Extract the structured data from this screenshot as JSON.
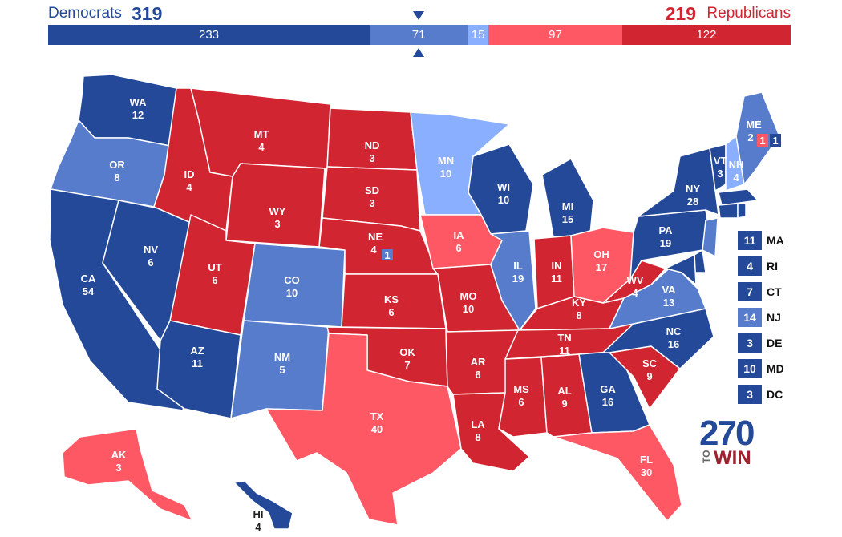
{
  "header": {
    "dem_label": "Democrats",
    "dem_total": "319",
    "rep_total": "219",
    "rep_label": "Republicans"
  },
  "colors": {
    "safe_dem": "#244999",
    "likely_dem": "#577ccc",
    "lean_dem": "#8aafff",
    "lean_rep": "#ff5865",
    "likely_rep": "#ff5865",
    "safe_rep": "#d22532"
  },
  "bar": [
    {
      "value": "233",
      "color": "#244999",
      "count": 233
    },
    {
      "value": "71",
      "color": "#577ccc",
      "count": 71
    },
    {
      "value": "15",
      "color": "#8aafff",
      "count": 15
    },
    {
      "value": "97",
      "color": "#ff5865",
      "count": 97
    },
    {
      "value": "122",
      "color": "#d22532",
      "count": 122
    }
  ],
  "states": {
    "WA": {
      "abbr": "WA",
      "ev": "12",
      "color": "#244999"
    },
    "OR": {
      "abbr": "OR",
      "ev": "8",
      "color": "#577ccc"
    },
    "CA": {
      "abbr": "CA",
      "ev": "54",
      "color": "#244999"
    },
    "NV": {
      "abbr": "NV",
      "ev": "6",
      "color": "#244999"
    },
    "ID": {
      "abbr": "ID",
      "ev": "4",
      "color": "#d22532"
    },
    "MT": {
      "abbr": "MT",
      "ev": "4",
      "color": "#d22532"
    },
    "WY": {
      "abbr": "WY",
      "ev": "3",
      "color": "#d22532"
    },
    "UT": {
      "abbr": "UT",
      "ev": "6",
      "color": "#d22532"
    },
    "AZ": {
      "abbr": "AZ",
      "ev": "11",
      "color": "#244999"
    },
    "CO": {
      "abbr": "CO",
      "ev": "10",
      "color": "#577ccc"
    },
    "NM": {
      "abbr": "NM",
      "ev": "5",
      "color": "#577ccc"
    },
    "ND": {
      "abbr": "ND",
      "ev": "3",
      "color": "#d22532"
    },
    "SD": {
      "abbr": "SD",
      "ev": "3",
      "color": "#d22532"
    },
    "NE": {
      "abbr": "NE",
      "ev": "4",
      "color": "#d22532",
      "district": "1"
    },
    "KS": {
      "abbr": "KS",
      "ev": "6",
      "color": "#d22532"
    },
    "OK": {
      "abbr": "OK",
      "ev": "7",
      "color": "#d22532"
    },
    "TX": {
      "abbr": "TX",
      "ev": "40",
      "color": "#ff5865"
    },
    "MN": {
      "abbr": "MN",
      "ev": "10",
      "color": "#8aafff"
    },
    "IA": {
      "abbr": "IA",
      "ev": "6",
      "color": "#ff5865"
    },
    "MO": {
      "abbr": "MO",
      "ev": "10",
      "color": "#d22532"
    },
    "AR": {
      "abbr": "AR",
      "ev": "6",
      "color": "#d22532"
    },
    "LA": {
      "abbr": "LA",
      "ev": "8",
      "color": "#d22532"
    },
    "WI": {
      "abbr": "WI",
      "ev": "10",
      "color": "#244999"
    },
    "IL": {
      "abbr": "IL",
      "ev": "19",
      "color": "#577ccc"
    },
    "MI": {
      "abbr": "MI",
      "ev": "15",
      "color": "#244999"
    },
    "IN": {
      "abbr": "IN",
      "ev": "11",
      "color": "#d22532"
    },
    "OH": {
      "abbr": "OH",
      "ev": "17",
      "color": "#ff5865"
    },
    "KY": {
      "abbr": "KY",
      "ev": "8",
      "color": "#d22532"
    },
    "TN": {
      "abbr": "TN",
      "ev": "11",
      "color": "#d22532"
    },
    "MS": {
      "abbr": "MS",
      "ev": "6",
      "color": "#d22532"
    },
    "AL": {
      "abbr": "AL",
      "ev": "9",
      "color": "#d22532"
    },
    "GA": {
      "abbr": "GA",
      "ev": "16",
      "color": "#244999"
    },
    "FL": {
      "abbr": "FL",
      "ev": "30",
      "color": "#ff5865"
    },
    "SC": {
      "abbr": "SC",
      "ev": "9",
      "color": "#d22532"
    },
    "NC": {
      "abbr": "NC",
      "ev": "16",
      "color": "#244999"
    },
    "VA": {
      "abbr": "VA",
      "ev": "13",
      "color": "#577ccc"
    },
    "WV": {
      "abbr": "WV",
      "ev": "4",
      "color": "#d22532"
    },
    "PA": {
      "abbr": "PA",
      "ev": "19",
      "color": "#244999"
    },
    "NY": {
      "abbr": "NY",
      "ev": "28",
      "color": "#244999"
    },
    "VT": {
      "abbr": "VT",
      "ev": "3",
      "color": "#244999"
    },
    "NH": {
      "abbr": "NH",
      "ev": "4",
      "color": "#8aafff"
    },
    "ME": {
      "abbr": "ME",
      "ev": "2",
      "color": "#577ccc",
      "district_rep": "1",
      "district_dem": "1"
    },
    "AK": {
      "abbr": "AK",
      "ev": "3",
      "color": "#ff5865"
    },
    "HI": {
      "abbr": "HI",
      "ev": "4",
      "color": "#244999"
    }
  },
  "small_states": [
    {
      "abbr": "MA",
      "ev": "11",
      "color": "#244999"
    },
    {
      "abbr": "RI",
      "ev": "4",
      "color": "#244999"
    },
    {
      "abbr": "CT",
      "ev": "7",
      "color": "#244999"
    },
    {
      "abbr": "NJ",
      "ev": "14",
      "color": "#577ccc"
    },
    {
      "abbr": "DE",
      "ev": "3",
      "color": "#244999"
    },
    {
      "abbr": "MD",
      "ev": "10",
      "color": "#244999"
    },
    {
      "abbr": "DC",
      "ev": "3",
      "color": "#244999"
    }
  ],
  "logo": {
    "number": "270",
    "to": "TO",
    "win": "WIN"
  }
}
